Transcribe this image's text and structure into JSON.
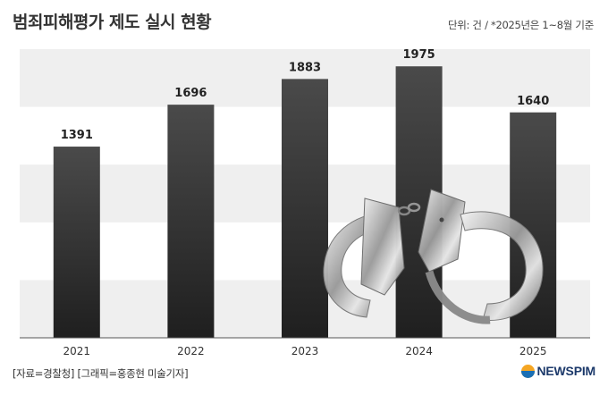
{
  "header": {
    "title": "범죄피해평가 제도 실시 현황",
    "unit_note": "단위: 건 / *2025년은 1~8월 기준"
  },
  "footer": {
    "source": "[자료=경찰청] [그래픽=홍종현 미술기자]",
    "logo_text": "NEWSPIM"
  },
  "chart_data": {
    "type": "bar",
    "title": "범죄피해평가 제도 실시 현황",
    "xlabel": "",
    "ylabel": "",
    "categories": [
      "2021",
      "2022",
      "2023",
      "2024",
      "2025"
    ],
    "values": [
      1391,
      1696,
      1883,
      1975,
      1640
    ],
    "data_labels": [
      "1391",
      "1696",
      "1883",
      "1975",
      "1640"
    ],
    "ylim": [
      0,
      2100
    ],
    "grid": "horizontal alternating bands",
    "bar_color_top": "#4a4a4a",
    "bar_color_bottom": "#1f1f1f"
  },
  "colors": {
    "band": "#efefef",
    "axis": "#555555",
    "label": "#222222"
  }
}
